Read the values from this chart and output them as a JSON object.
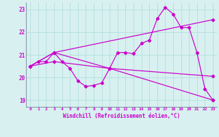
{
  "xlabel": "Windchill (Refroidissement éolien,°C)",
  "background_color": "#d8f0f0",
  "grid_color": "#b8e0e0",
  "line_color": "#cc00cc",
  "xlim": [
    -0.5,
    23.5
  ],
  "ylim": [
    18.7,
    23.3
  ],
  "yticks": [
    19,
    20,
    21,
    22,
    23
  ],
  "xticks": [
    0,
    1,
    2,
    3,
    4,
    5,
    6,
    7,
    8,
    9,
    10,
    11,
    12,
    13,
    14,
    15,
    16,
    17,
    18,
    19,
    20,
    21,
    22,
    23
  ],
  "curves": [
    {
      "x": [
        0,
        1,
        2,
        3,
        4,
        5,
        6,
        7,
        8,
        9,
        10,
        11,
        12,
        13,
        14,
        15,
        16,
        17,
        18,
        19,
        20,
        21,
        22,
        23
      ],
      "y": [
        20.5,
        20.7,
        20.7,
        21.1,
        20.7,
        20.4,
        19.85,
        19.6,
        19.65,
        19.75,
        20.4,
        21.1,
        21.1,
        21.05,
        21.5,
        21.65,
        22.6,
        23.1,
        22.8,
        22.2,
        22.2,
        21.1,
        19.5,
        19.0
      ]
    },
    {
      "x": [
        0,
        3,
        23
      ],
      "y": [
        20.5,
        21.1,
        22.55
      ]
    },
    {
      "x": [
        0,
        3,
        10,
        23
      ],
      "y": [
        20.5,
        20.7,
        20.4,
        20.05
      ]
    },
    {
      "x": [
        0,
        3,
        10,
        23
      ],
      "y": [
        20.5,
        21.1,
        20.4,
        19.0
      ]
    }
  ]
}
